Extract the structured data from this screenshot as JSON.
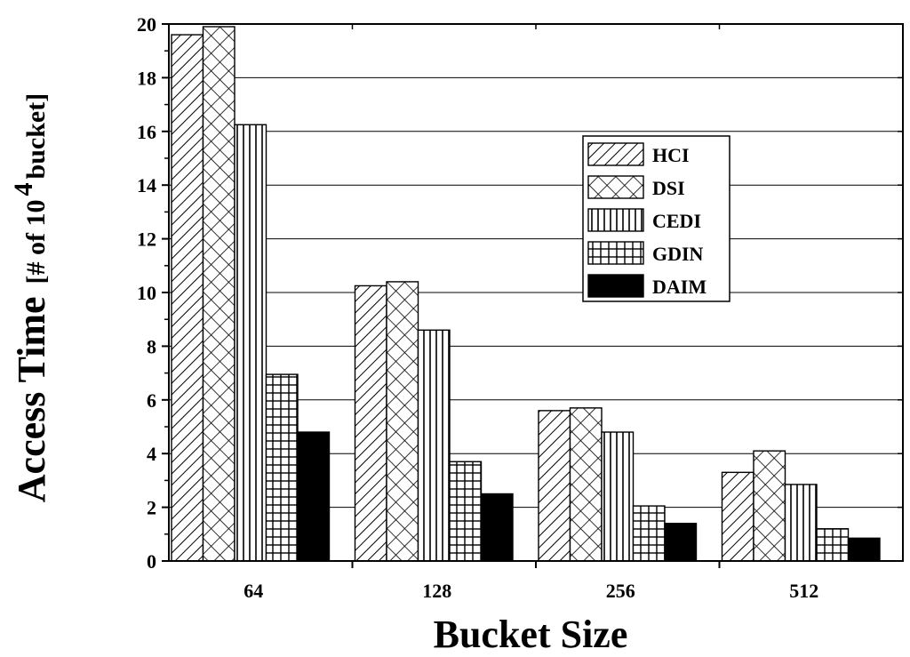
{
  "chart_data": {
    "type": "bar",
    "title": "",
    "xlabel": "Bucket Size",
    "ylabel": {
      "main": "Access Time",
      "unit_prefix": "[# of 10",
      "unit_exp": "4",
      "unit_suffix": " bucket]"
    },
    "categories": [
      "64",
      "128",
      "256",
      "512"
    ],
    "ylim": [
      0,
      20
    ],
    "yticks": [
      "0",
      "2",
      "4",
      "6",
      "8",
      "10",
      "12",
      "14",
      "16",
      "18",
      "20"
    ],
    "grid": true,
    "legend_position": "upper-right",
    "series": [
      {
        "name": "HCI",
        "pattern": "diagonal-hatch",
        "values": [
          19.6,
          10.25,
          5.6,
          3.3
        ]
      },
      {
        "name": "DSI",
        "pattern": "cross-hatch",
        "values": [
          19.9,
          10.4,
          5.7,
          4.1
        ]
      },
      {
        "name": "CEDI",
        "pattern": "vertical-lines",
        "values": [
          16.25,
          8.6,
          4.8,
          2.85
        ]
      },
      {
        "name": "GDIN",
        "pattern": "grid",
        "values": [
          6.95,
          3.7,
          2.05,
          1.2
        ]
      },
      {
        "name": "DAIM",
        "pattern": "solid-black",
        "values": [
          4.8,
          2.5,
          1.4,
          0.85
        ]
      }
    ]
  }
}
